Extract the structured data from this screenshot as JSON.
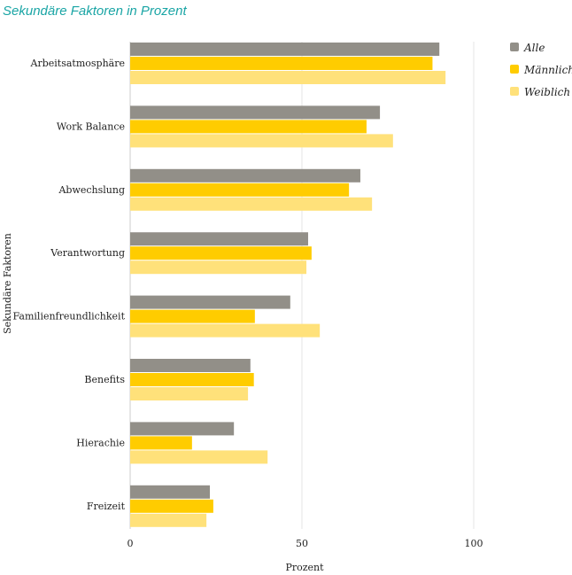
{
  "chart_data": {
    "type": "bar",
    "orientation": "horizontal",
    "title": "Sekundäre Faktoren in Prozent",
    "xlabel": "Prozent",
    "ylabel": "Sekundäre Faktoren",
    "xlim": [
      0,
      125
    ],
    "xticks": [
      0,
      50,
      100
    ],
    "grid": true,
    "legend_position": "top-right",
    "categories": [
      "Arbeitsatmosphäre",
      "Work Balance",
      "Abwechslung",
      "Verantwortung",
      "Familienfreundlichkeit",
      "Benefits",
      "Hierachie",
      "Freizeit"
    ],
    "series": [
      {
        "name": "Alle",
        "color": "#928f88",
        "values": [
          90,
          72.7,
          67,
          51.8,
          46.6,
          35,
          30.2,
          23.2
        ]
      },
      {
        "name": "Männlich",
        "color": "#ffcc00",
        "values": [
          88,
          68.8,
          63.7,
          52.8,
          36.3,
          36,
          18,
          24.2
        ]
      },
      {
        "name": "Weiblich",
        "color": "#ffe17a",
        "values": [
          91.8,
          76.5,
          70.4,
          51.3,
          55.2,
          34.3,
          40,
          22.2
        ]
      }
    ]
  }
}
